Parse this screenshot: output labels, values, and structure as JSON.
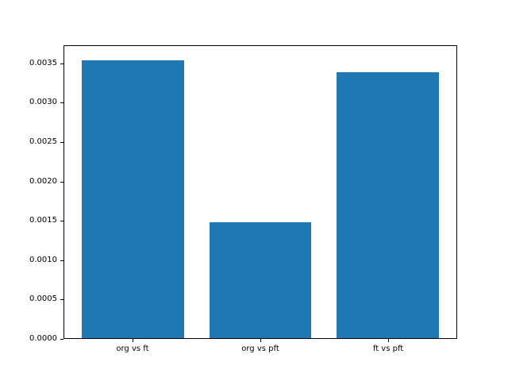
{
  "chart_data": {
    "type": "bar",
    "title": "",
    "xlabel": "",
    "ylabel": "",
    "categories": [
      "org vs ft",
      "org vs pft",
      "ft vs pft"
    ],
    "values": [
      0.00355,
      0.00148,
      0.0034
    ],
    "bar_color": "#1f77b4",
    "background_color": "#ffffff",
    "axis_color": "#000000",
    "ylim": [
      0,
      0.00373
    ],
    "xlim": [
      -0.54,
      2.54
    ],
    "x": [
      0,
      1,
      2
    ],
    "bar_width": 0.8,
    "yticks": [
      0.0,
      0.0005,
      0.001,
      0.0015,
      0.002,
      0.0025,
      0.003,
      0.0035
    ],
    "ytick_labels": [
      "0.0000",
      "0.0005",
      "0.0010",
      "0.0015",
      "0.0020",
      "0.0025",
      "0.0030",
      "0.0035"
    ],
    "grid": false,
    "legend": "none"
  }
}
